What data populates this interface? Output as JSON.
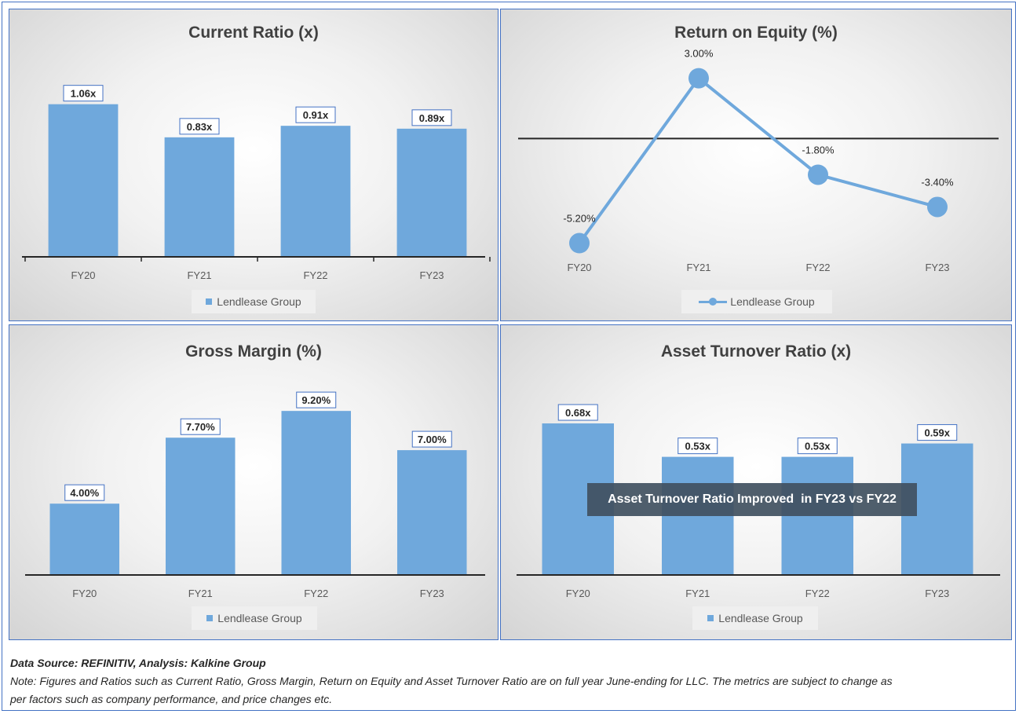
{
  "colors": {
    "bar": "#6fa8dc",
    "axis": "#262626",
    "text": "#595959",
    "border": "#4472c4"
  },
  "chart_data": [
    {
      "type": "bar",
      "title": "Current Ratio (x)",
      "categories": [
        "FY20",
        "FY21",
        "FY22",
        "FY23"
      ],
      "series": [
        {
          "name": "Lendlease Group",
          "values": [
            1.06,
            0.83,
            0.91,
            0.89
          ]
        }
      ],
      "data_labels": [
        "1.06x",
        "0.83x",
        "0.91x",
        "0.89x"
      ],
      "ylim": [
        0,
        1.2
      ],
      "legend": "bottom",
      "grid": false
    },
    {
      "type": "line",
      "title": "Return on Equity (%)",
      "categories": [
        "FY20",
        "FY21",
        "FY22",
        "FY23"
      ],
      "series": [
        {
          "name": "Lendlease Group",
          "values": [
            -5.2,
            3.0,
            -1.8,
            -3.4
          ]
        }
      ],
      "data_labels": [
        "-5.20%",
        "3.00%",
        "-1.80%",
        "-3.40%"
      ],
      "ylim": [
        -6,
        4
      ],
      "legend": "bottom",
      "grid": false
    },
    {
      "type": "bar",
      "title": "Gross Margin (%)",
      "categories": [
        "FY20",
        "FY21",
        "FY22",
        "FY23"
      ],
      "series": [
        {
          "name": "Lendlease Group",
          "values": [
            4.0,
            7.7,
            9.2,
            7.0
          ]
        }
      ],
      "data_labels": [
        "4.00%",
        "7.70%",
        "9.20%",
        "7.00%"
      ],
      "ylim": [
        0,
        10
      ],
      "legend": "bottom",
      "grid": false
    },
    {
      "type": "bar",
      "title": "Asset Turnover Ratio (x)",
      "categories": [
        "FY20",
        "FY21",
        "FY22",
        "FY23"
      ],
      "series": [
        {
          "name": "Lendlease Group",
          "values": [
            0.68,
            0.53,
            0.53,
            0.59
          ]
        }
      ],
      "data_labels": [
        "0.68x",
        "0.53x",
        "0.53x",
        "0.59x"
      ],
      "ylim": [
        0,
        0.8
      ],
      "legend": "bottom",
      "grid": false,
      "annotation": "Asset Turnover Ratio Improved  in FY23 vs FY22"
    }
  ],
  "footer": {
    "source": "Data Source: REFINITIV, Analysis: Kalkine Group",
    "note_line1": "Note: Figures and Ratios such as Current Ratio, Gross Margin, Return on Equity and Asset Turnover Ratio are on full year June-ending for LLC. The metrics are subject to change as",
    "note_line2": "per factors such as company performance, and price changes etc."
  }
}
